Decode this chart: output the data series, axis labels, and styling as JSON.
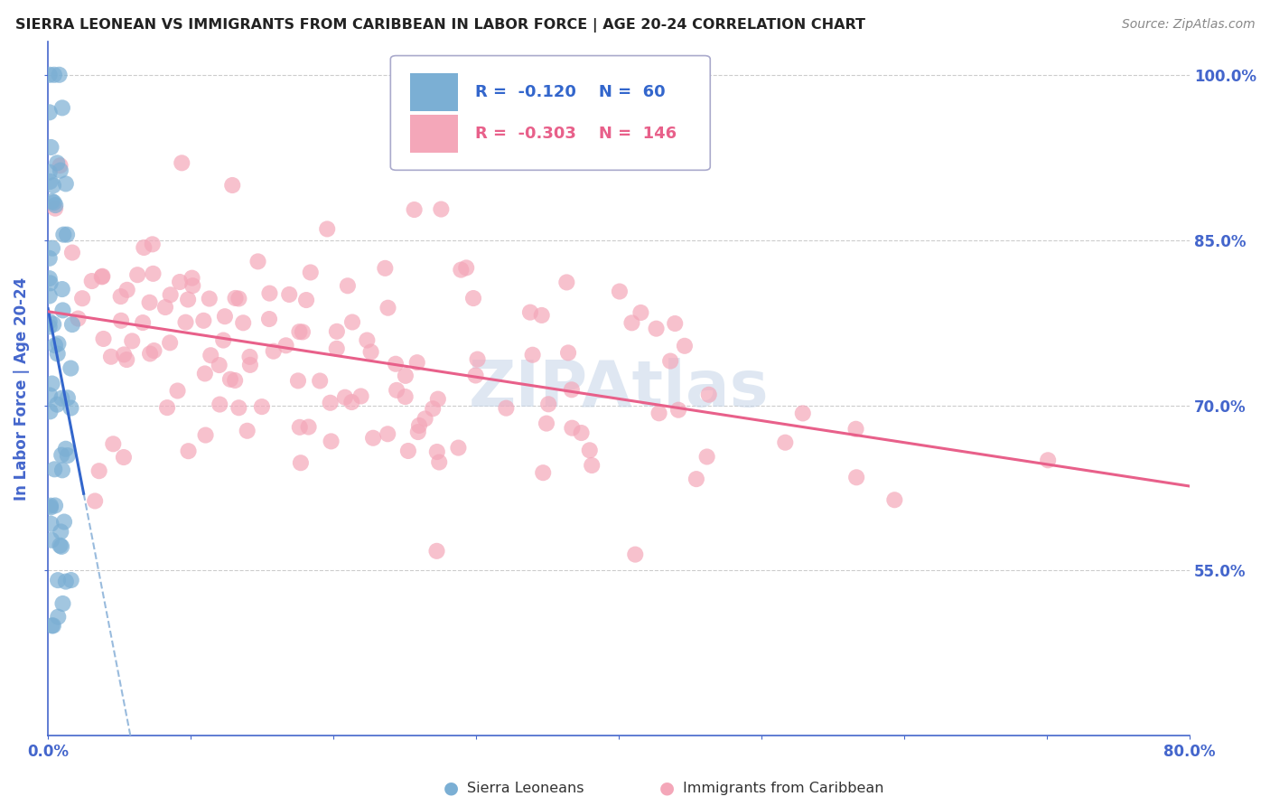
{
  "title": "SIERRA LEONEAN VS IMMIGRANTS FROM CARIBBEAN IN LABOR FORCE | AGE 20-24 CORRELATION CHART",
  "source": "Source: ZipAtlas.com",
  "ylabel": "In Labor Force | Age 20-24",
  "xmin": 0.0,
  "xmax": 0.8,
  "ymin": 0.4,
  "ymax": 1.03,
  "yticks": [
    0.55,
    0.7,
    0.85,
    1.0
  ],
  "ytick_labels": [
    "55.0%",
    "70.0%",
    "85.0%",
    "100.0%"
  ],
  "xticks": [
    0.0,
    0.1,
    0.2,
    0.3,
    0.4,
    0.5,
    0.6,
    0.7,
    0.8
  ],
  "xtick_labels": [
    "0.0%",
    "",
    "",
    "",
    "",
    "",
    "",
    "",
    "80.0%"
  ],
  "sl_R": -0.12,
  "sl_N": 60,
  "carib_R": -0.303,
  "carib_N": 146,
  "blue_color": "#7bafd4",
  "pink_color": "#f4a7b9",
  "blue_line_color": "#3366cc",
  "pink_line_color": "#e8608a",
  "blue_dash_color": "#99bbdd",
  "axis_color": "#4466cc",
  "grid_color": "#cccccc",
  "watermark_color": "#c5d5e8",
  "title_fontsize": 11.5,
  "source_fontsize": 10,
  "tick_fontsize": 12,
  "ylabel_fontsize": 12
}
